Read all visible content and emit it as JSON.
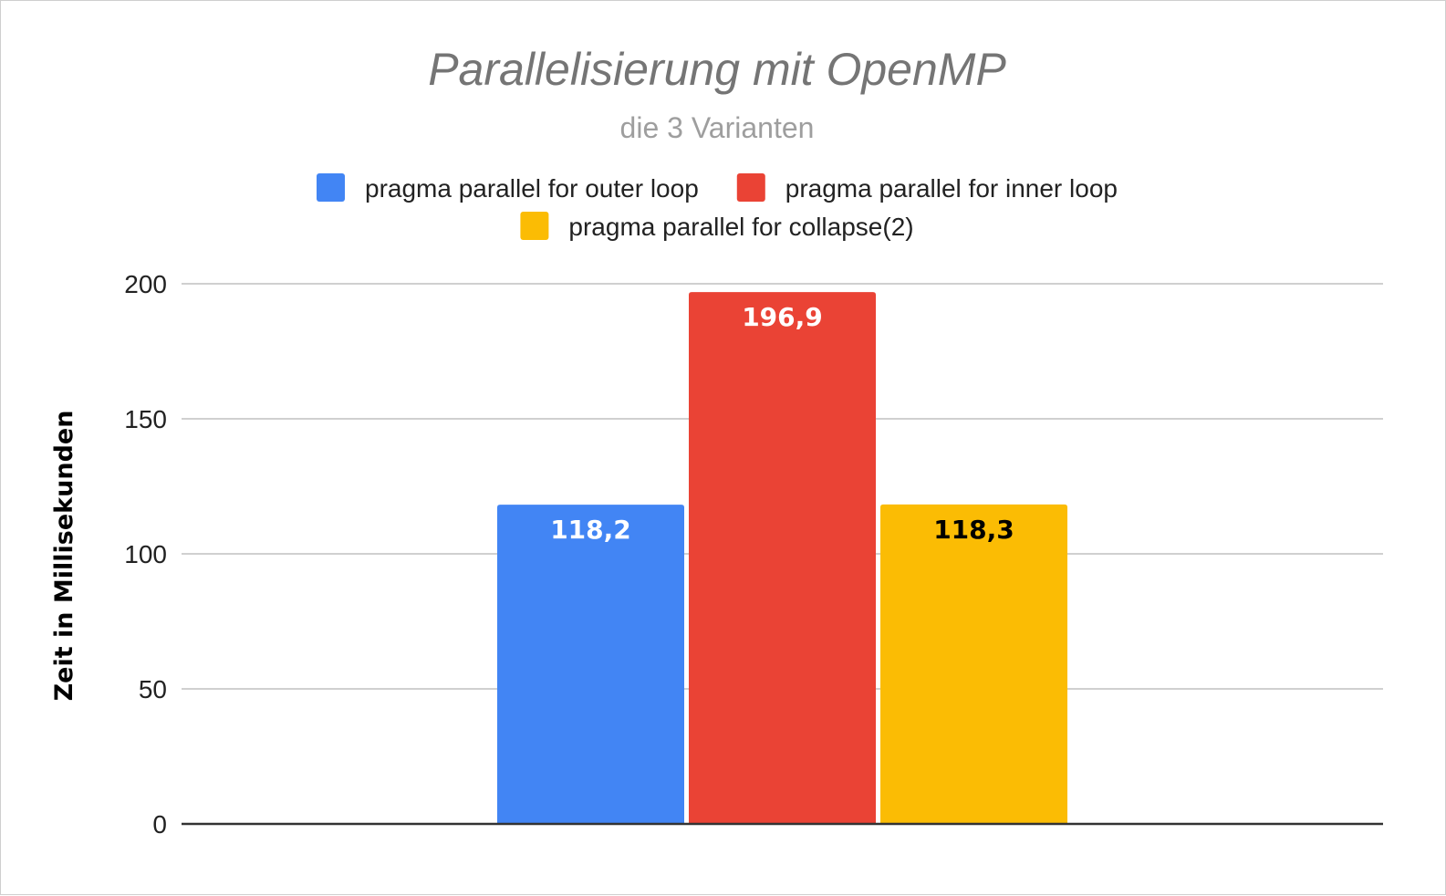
{
  "chart_data": {
    "type": "bar",
    "title": "Parallelisierung mit OpenMP",
    "subtitle": "die 3 Varianten",
    "xlabel": "",
    "ylabel": "Zeit in Millisekunden",
    "ylim": [
      0,
      200
    ],
    "yticks": [
      "0",
      "50",
      "100",
      "150",
      "200"
    ],
    "grid": true,
    "legend_position": "top",
    "categories": [
      ""
    ],
    "series": [
      {
        "name": "pragma parallel for outer loop",
        "values": [
          118.2
        ],
        "label": "118,2",
        "color": "#4285f4",
        "label_color": "#ffffff"
      },
      {
        "name": "pragma parallel for inner loop",
        "values": [
          196.9
        ],
        "label": "196,9",
        "color": "#ea4335",
        "label_color": "#ffffff"
      },
      {
        "name": "pragma parallel for collapse(2)",
        "values": [
          118.3
        ],
        "label": "118,3",
        "color": "#fbbc04",
        "label_color": "#000000"
      }
    ]
  }
}
